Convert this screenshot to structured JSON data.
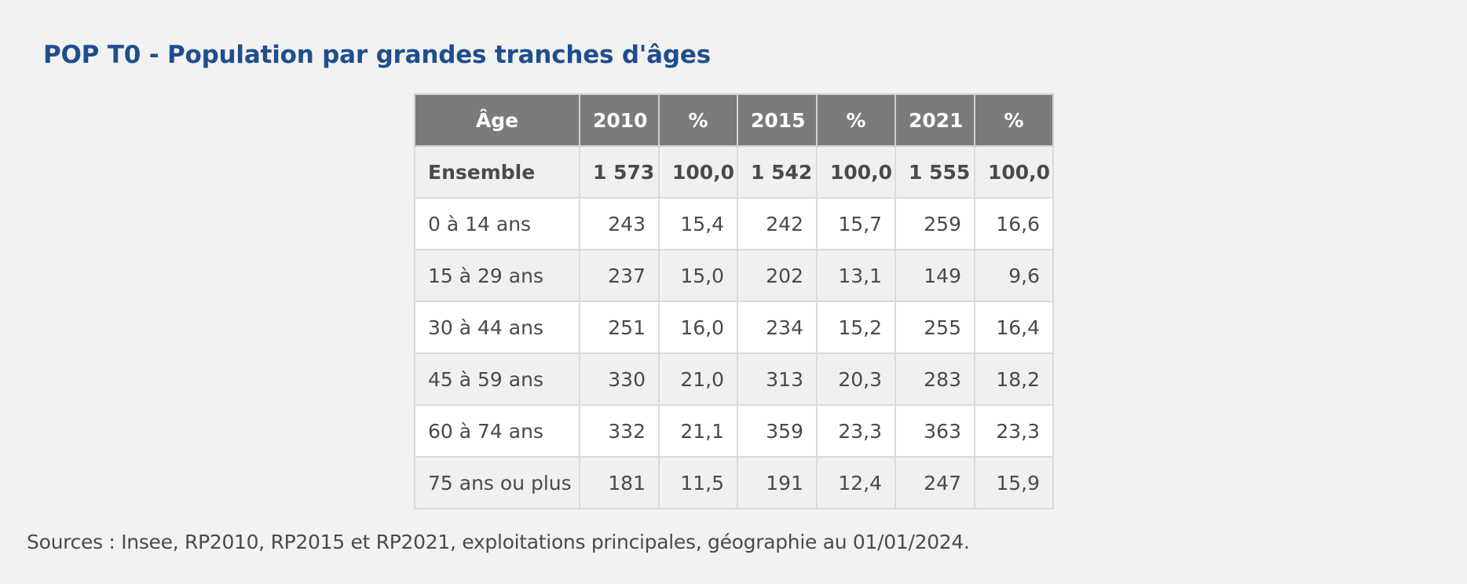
{
  "title": "POP T0 - Population par grandes tranches d'âges",
  "table": {
    "headers": [
      "Âge",
      "2010",
      "%",
      "2015",
      "%",
      "2021",
      "%"
    ],
    "rows": [
      {
        "label": "Ensemble",
        "bold": true,
        "values": [
          "1 573",
          "100,0",
          "1 542",
          "100,0",
          "1 555",
          "100,0"
        ]
      },
      {
        "label": "0 à 14 ans",
        "values": [
          "243",
          "15,4",
          "242",
          "15,7",
          "259",
          "16,6"
        ]
      },
      {
        "label": "15 à 29 ans",
        "values": [
          "237",
          "15,0",
          "202",
          "13,1",
          "149",
          "9,6"
        ]
      },
      {
        "label": "30 à 44 ans",
        "values": [
          "251",
          "16,0",
          "234",
          "15,2",
          "255",
          "16,4"
        ]
      },
      {
        "label": "45 à 59 ans",
        "values": [
          "330",
          "21,0",
          "313",
          "20,3",
          "283",
          "18,2"
        ]
      },
      {
        "label": "60 à 74 ans",
        "values": [
          "332",
          "21,1",
          "359",
          "23,3",
          "363",
          "23,3"
        ]
      },
      {
        "label": "75 ans ou plus",
        "values": [
          "181",
          "11,5",
          "191",
          "12,4",
          "247",
          "15,9"
        ]
      }
    ]
  },
  "source": "Sources : Insee, RP2010, RP2015 et RP2021, exploitations principales, géographie au 01/01/2024."
}
